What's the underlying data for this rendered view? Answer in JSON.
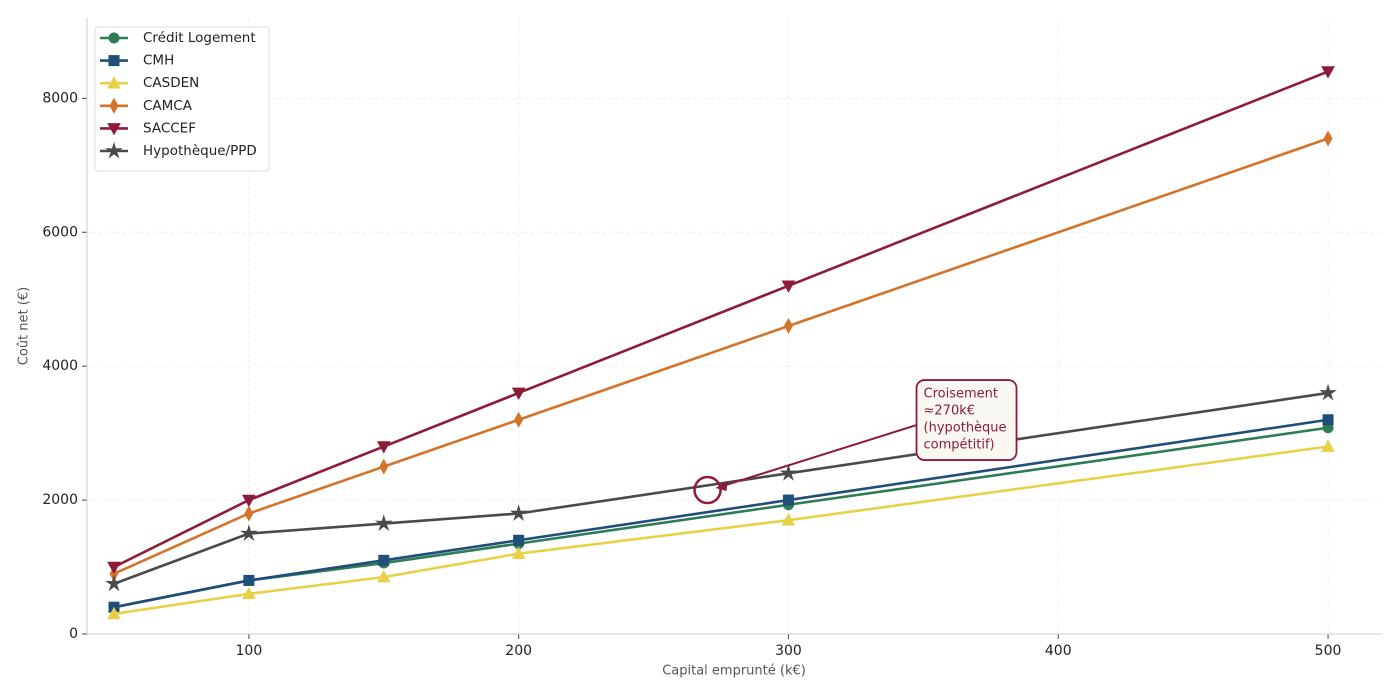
{
  "chart_data": {
    "type": "line",
    "x_label": "Capital emprunté (k€)",
    "y_label": "Coût net (€)",
    "x": [
      50,
      100,
      150,
      200,
      300,
      500
    ],
    "series": [
      {
        "name": "Crédit Logement",
        "color": "#2e7d57",
        "marker": "circle",
        "values": [
          400,
          800,
          1060,
          1350,
          1930,
          3080
        ]
      },
      {
        "name": "CMH",
        "color": "#1f4e79",
        "marker": "square",
        "values": [
          400,
          800,
          1100,
          1400,
          2000,
          3200
        ]
      },
      {
        "name": "CASDEN",
        "color": "#e8d04a",
        "marker": "triangle-up",
        "values": [
          300,
          600,
          850,
          1200,
          1700,
          2800
        ]
      },
      {
        "name": "CAMCA",
        "color": "#d4732a",
        "marker": "diamond",
        "values": [
          900,
          1800,
          2500,
          3200,
          4600,
          7400
        ]
      },
      {
        "name": "SACCEF",
        "color": "#8e1b3a",
        "marker": "triangle-down",
        "values": [
          1000,
          2000,
          2800,
          3600,
          5200,
          8400
        ]
      },
      {
        "name": "Hypothèque/PPD",
        "color": "#4a4a4a",
        "marker": "star",
        "values": [
          750,
          1500,
          1650,
          1800,
          2400,
          3600
        ]
      }
    ],
    "xlim": [
      40,
      520
    ],
    "xticks": [
      100,
      200,
      300,
      400,
      500
    ],
    "ylim": [
      0,
      9200
    ],
    "yticks": [
      0,
      2000,
      4000,
      6000,
      8000
    ],
    "grid": true,
    "legend": "upper-left",
    "annotation": {
      "text_lines": [
        "Croisement",
        "≈270k€",
        "(hypothèque",
        "compétitif)"
      ],
      "x": 270,
      "y": 2150,
      "color": "#8e1b3a"
    }
  }
}
